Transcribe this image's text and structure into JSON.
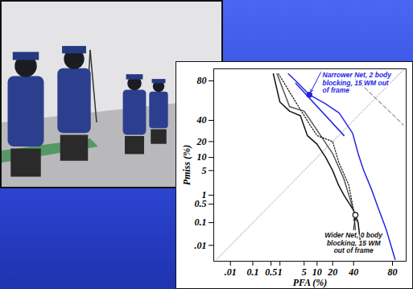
{
  "chart_data": {
    "type": "det",
    "x_label": "PFA (%)",
    "y_label": "Pmiss (%)",
    "xlim": [
      0.0014,
      89
    ],
    "ylim": [
      0.0016,
      88
    ],
    "xticks": [
      {
        "value": 0.01,
        "label": ".01"
      },
      0.1,
      0.5,
      1,
      5,
      10,
      20,
      40,
      80
    ],
    "yticks": [
      {
        "value": 0.01,
        "label": ".01"
      },
      0.1,
      0.5,
      1,
      5,
      10,
      20,
      40,
      80
    ],
    "grid": false,
    "series": [
      {
        "type": "line",
        "color": "#c8c8c8",
        "line_style": "dotted",
        "x": [
          0.002,
          88
        ],
        "values": [
          0.002,
          88
        ]
      },
      {
        "type": "line",
        "color": "#9a9a9a",
        "line_style": "dashed",
        "x": [
          42,
          87.6
        ],
        "values": [
          81.6,
          35
        ]
      },
      {
        "type": "line",
        "color": "#2424e6",
        "line_style": "solid",
        "x": [
          1.85,
          3.5,
          6.7,
          15,
          25.5,
          39,
          45,
          51,
          60,
          66.6,
          74.5,
          82
        ],
        "values": [
          85,
          78,
          67.6,
          58,
          48,
          27,
          12,
          5.2,
          1.5,
          0.4,
          0.056,
          0.002
        ]
      },
      {
        "type": "line",
        "color": "#2424e6",
        "line_style": "solid",
        "x": [
          3,
          30
        ],
        "values": [
          78,
          25
        ]
      },
      {
        "type": "line",
        "color": "#111111",
        "line_style": "solid",
        "x": [
          0.6,
          1,
          2,
          4,
          6,
          10,
          15,
          20,
          25,
          30,
          40,
          45,
          48
        ],
        "values": [
          85,
          60,
          50,
          45,
          25,
          18,
          10,
          5,
          2,
          1,
          0.3,
          0.1,
          0.01
        ]
      },
      {
        "type": "line",
        "color": "#555555",
        "line_style": "solid",
        "x": [
          0.8,
          2,
          5,
          10,
          20,
          30,
          35,
          40,
          42
        ],
        "values": [
          85,
          55,
          50,
          30,
          12,
          3,
          1,
          0.3,
          0.05
        ]
      },
      {
        "type": "line",
        "color": "#111111",
        "line_style": "dotted",
        "x": [
          0.9,
          3,
          7,
          10,
          20,
          25,
          35,
          40
        ],
        "values": [
          85,
          60,
          35,
          25,
          20,
          8,
          2,
          0.3
        ]
      },
      {
        "type": "scatter",
        "color": "#2424e6",
        "marker": "circle",
        "x": [
          6.7
        ],
        "values": [
          67.6
        ]
      },
      {
        "type": "scatter",
        "color": "#111111",
        "marker": "open_circle",
        "x": [
          42
        ],
        "values": [
          0.2
        ]
      }
    ],
    "annotations": [
      {
        "text": "Narrower Net, 2 body\nblocking, 15 WM out\nof frame",
        "x": 12,
        "y": 86,
        "color": "#2424e6"
      },
      {
        "text": "Wider Net, 0 body\nblocking, 15 WM\nout of frame",
        "x": 40,
        "y": 0.05,
        "color": "#111111"
      }
    ]
  }
}
